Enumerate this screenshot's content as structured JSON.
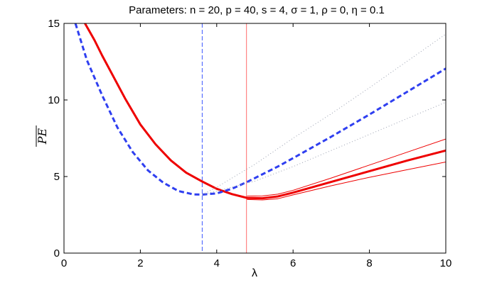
{
  "chart_data": {
    "type": "line",
    "title": "Parameters: n = 20, p = 40, s = 4, σ = 1, ρ = 0, η = 0.1",
    "xlabel": "λ",
    "ylabel": "PE",
    "xlim": [
      0,
      10
    ],
    "ylim": [
      0,
      15
    ],
    "xticks": [
      "0",
      "2",
      "4",
      "6",
      "8",
      "10"
    ],
    "yticks": [
      "0",
      "5",
      "10",
      "15"
    ],
    "grid": false,
    "legend": "none",
    "vlines": [
      {
        "x": 3.62,
        "color": "#3b57ff",
        "style": "dashed"
      },
      {
        "x": 4.78,
        "color": "#ff6a6a",
        "style": "solid"
      }
    ],
    "series": [
      {
        "style": "solid-thick",
        "color": "#ee0000",
        "x": [
          0.55,
          0.8,
          1.0,
          1.3,
          1.6,
          2.0,
          2.4,
          2.8,
          3.2,
          3.6,
          4.0,
          4.4,
          4.8,
          5.2,
          5.6,
          6.0,
          7.0,
          8.0,
          9.0,
          10.0
        ],
        "y": [
          15.0,
          13.9,
          12.9,
          11.5,
          10.1,
          8.4,
          7.1,
          6.05,
          5.25,
          4.7,
          4.2,
          3.85,
          3.6,
          3.58,
          3.7,
          3.95,
          4.65,
          5.35,
          6.05,
          6.7
        ]
      },
      {
        "style": "solid-thin",
        "color": "#ee0000",
        "x": [
          4.8,
          5.2,
          5.6,
          6.0,
          7.0,
          8.0,
          9.0,
          10.0
        ],
        "y": [
          3.72,
          3.73,
          3.85,
          4.1,
          4.9,
          5.75,
          6.6,
          7.45
        ]
      },
      {
        "style": "solid-thin",
        "color": "#ee0000",
        "x": [
          4.8,
          5.2,
          5.6,
          6.0,
          7.0,
          8.0,
          9.0,
          10.0
        ],
        "y": [
          3.5,
          3.47,
          3.55,
          3.8,
          4.4,
          4.95,
          5.45,
          5.95
        ]
      },
      {
        "style": "dashed-thick",
        "color": "#2f3ff0",
        "x": [
          0.3,
          0.6,
          1.0,
          1.4,
          1.8,
          2.2,
          2.6,
          3.0,
          3.4,
          3.62,
          4.0,
          4.4,
          4.8,
          5.2,
          5.6,
          6.0,
          7.0,
          8.0,
          9.0,
          10.0
        ],
        "y": [
          15.0,
          12.6,
          10.3,
          8.2,
          6.6,
          5.4,
          4.6,
          4.05,
          3.83,
          3.82,
          3.9,
          4.2,
          4.65,
          5.15,
          5.65,
          6.2,
          7.6,
          9.05,
          10.55,
          12.05
        ]
      },
      {
        "style": "dotted-thin",
        "color": "#9aa0b0",
        "x": [
          3.62,
          4.0,
          5.0,
          6.0,
          7.0,
          8.0,
          9.0,
          10.0
        ],
        "y": [
          3.82,
          4.3,
          5.8,
          7.5,
          9.1,
          10.8,
          12.55,
          14.3
        ]
      },
      {
        "style": "dotted-thin",
        "color": "#9aa0b0",
        "x": [
          3.62,
          4.0,
          5.0,
          6.0,
          7.0,
          8.0,
          9.0,
          10.0
        ],
        "y": [
          3.82,
          4.05,
          4.7,
          5.65,
          6.7,
          7.75,
          8.8,
          9.85
        ]
      }
    ]
  }
}
